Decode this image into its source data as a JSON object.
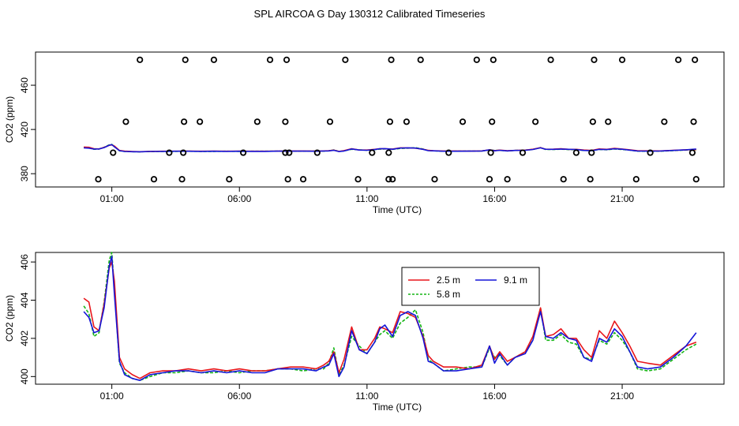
{
  "figure_title": "SPL AIRCOA G  Day 130312  Calibrated Timeseries",
  "chart_data": [
    {
      "type": "scatter",
      "name": "top-panel",
      "xlabel": "Time (UTC)",
      "ylabel": "CO2 (ppm)",
      "xlim": [
        -1.0,
        24.0
      ],
      "ylim": [
        368,
        490
      ],
      "xticks": [
        {
          "value": 1,
          "label": "01:00"
        },
        {
          "value": 6,
          "label": "06:00"
        },
        {
          "value": 11,
          "label": "11:00"
        },
        {
          "value": 16,
          "label": "16:00"
        },
        {
          "value": 21,
          "label": "21:00"
        }
      ],
      "yticks": [
        {
          "value": 380,
          "label": "380"
        },
        {
          "value": 420,
          "label": "420"
        },
        {
          "value": 460,
          "label": "460"
        }
      ],
      "markers": {
        "x": [
          0.47,
          1.05,
          1.55,
          2.1,
          2.65,
          3.25,
          3.75,
          3.8,
          3.83,
          3.88,
          4.45,
          5.0,
          5.6,
          6.15,
          6.7,
          7.2,
          7.8,
          7.8,
          7.85,
          7.9,
          7.95,
          8.5,
          9.05,
          9.55,
          10.15,
          10.65,
          11.2,
          11.85,
          11.85,
          11.9,
          11.95,
          12.0,
          12.55,
          13.1,
          13.65,
          14.2,
          14.75,
          15.3,
          15.8,
          15.85,
          15.9,
          15.95,
          16.5,
          17.1,
          17.6,
          18.2,
          18.7,
          19.2,
          19.75,
          19.8,
          19.85,
          19.9,
          20.45,
          21.0,
          21.55,
          22.1,
          22.65,
          23.2,
          23.75,
          23.8,
          23.85,
          23.9
        ],
        "y": [
          375,
          399,
          427,
          483,
          375,
          399,
          375,
          399,
          427,
          483,
          427,
          483,
          375,
          399,
          427,
          483,
          399,
          427,
          483,
          375,
          399,
          375,
          399,
          427,
          483,
          375,
          399,
          375,
          399,
          427,
          483,
          375,
          427,
          483,
          375,
          399,
          427,
          483,
          375,
          399,
          427,
          483,
          375,
          399,
          427,
          483,
          375,
          399,
          375,
          399,
          427,
          483,
          427,
          483,
          375,
          399,
          427,
          483,
          399,
          427,
          483,
          375
        ]
      },
      "series": [
        {
          "name": "2.5 m",
          "color": "#e8161b",
          "values_from": "bottom-panel"
        },
        {
          "name": "5.8 m",
          "color": "#15b515",
          "values_from": "bottom-panel"
        },
        {
          "name": "9.1 m",
          "color": "#1515d8",
          "values_from": "bottom-panel"
        }
      ]
    },
    {
      "type": "line",
      "name": "bottom-panel",
      "xlabel": "Time (UTC)",
      "ylabel": "CO2 (ppm)",
      "xlim": [
        -1.0,
        24.0
      ],
      "ylim": [
        399.6,
        406.5
      ],
      "xticks": [
        {
          "value": 1,
          "label": "01:00"
        },
        {
          "value": 6,
          "label": "06:00"
        },
        {
          "value": 11,
          "label": "11:00"
        },
        {
          "value": 16,
          "label": "16:00"
        },
        {
          "value": 21,
          "label": "21:00"
        }
      ],
      "yticks": [
        {
          "value": 400,
          "label": "400"
        },
        {
          "value": 402,
          "label": "402"
        },
        {
          "value": 404,
          "label": "404"
        },
        {
          "value": 406,
          "label": "406"
        }
      ],
      "legend": {
        "position": "top-center",
        "entries": [
          "2.5 m",
          "9.1 m",
          "5.8 m"
        ]
      },
      "x": [
        -0.1,
        0.1,
        0.3,
        0.5,
        0.7,
        0.9,
        1.0,
        1.1,
        1.3,
        1.5,
        1.8,
        2.1,
        2.5,
        3.0,
        3.5,
        4.0,
        4.5,
        5.0,
        5.5,
        6.0,
        6.5,
        7.0,
        7.5,
        8.0,
        8.5,
        9.0,
        9.3,
        9.5,
        9.7,
        9.9,
        10.1,
        10.4,
        10.7,
        11.0,
        11.3,
        11.5,
        11.7,
        12.0,
        12.3,
        12.6,
        12.9,
        13.2,
        13.4,
        13.6,
        14.0,
        14.5,
        15.0,
        15.5,
        15.8,
        16.0,
        16.2,
        16.5,
        16.8,
        17.2,
        17.5,
        17.8,
        18.0,
        18.3,
        18.6,
        18.9,
        19.2,
        19.5,
        19.8,
        20.1,
        20.4,
        20.7,
        21.0,
        21.3,
        21.6,
        22.0,
        22.5,
        23.0,
        23.5,
        23.9
      ],
      "series": [
        {
          "name": "2.5 m",
          "color": "#e8161b",
          "dash": "solid",
          "values": [
            404.1,
            403.9,
            402.6,
            402.4,
            403.8,
            405.7,
            406.0,
            405.0,
            401.0,
            400.4,
            400.1,
            399.9,
            400.2,
            400.3,
            400.3,
            400.4,
            400.3,
            400.4,
            400.3,
            400.4,
            400.3,
            400.3,
            400.4,
            400.5,
            400.5,
            400.4,
            400.6,
            400.8,
            401.3,
            400.2,
            400.9,
            402.6,
            401.4,
            401.4,
            402.0,
            402.6,
            402.5,
            402.3,
            403.4,
            403.3,
            403.1,
            402.1,
            401.1,
            400.8,
            400.5,
            400.5,
            400.4,
            400.6,
            401.6,
            400.9,
            401.3,
            400.8,
            401.0,
            401.3,
            402.1,
            403.6,
            402.1,
            402.2,
            402.5,
            402.0,
            402.0,
            401.4,
            401.0,
            402.4,
            402.0,
            402.9,
            402.3,
            401.6,
            400.8,
            400.7,
            400.6,
            401.1,
            401.6,
            401.8
          ]
        },
        {
          "name": "5.8 m",
          "color": "#15b515",
          "dash": "dashed",
          "values": [
            403.7,
            403.3,
            402.1,
            402.3,
            403.9,
            406.1,
            406.5,
            404.6,
            400.7,
            400.2,
            399.9,
            399.8,
            400.0,
            400.2,
            400.2,
            400.3,
            400.2,
            400.2,
            400.3,
            400.2,
            400.3,
            400.3,
            400.4,
            400.4,
            400.3,
            400.4,
            400.4,
            400.7,
            401.5,
            400.1,
            400.6,
            402.1,
            401.6,
            401.2,
            401.8,
            402.2,
            402.4,
            402.0,
            402.8,
            403.1,
            403.5,
            402.3,
            400.9,
            400.7,
            400.3,
            400.4,
            400.5,
            400.5,
            401.5,
            401.0,
            401.1,
            400.6,
            401.0,
            401.3,
            401.9,
            403.6,
            401.9,
            401.9,
            402.2,
            401.8,
            401.7,
            401.0,
            400.9,
            401.9,
            401.7,
            402.3,
            401.9,
            401.3,
            400.4,
            400.3,
            400.4,
            400.9,
            401.4,
            401.7
          ]
        },
        {
          "name": "9.1 m",
          "color": "#1515d8",
          "dash": "solid",
          "values": [
            403.4,
            403.1,
            402.3,
            402.4,
            403.6,
            405.8,
            406.3,
            404.3,
            400.8,
            400.1,
            399.9,
            399.8,
            400.1,
            400.2,
            400.3,
            400.3,
            400.2,
            400.3,
            400.2,
            400.3,
            400.2,
            400.2,
            400.4,
            400.4,
            400.4,
            400.3,
            400.5,
            400.6,
            401.2,
            400.0,
            400.5,
            402.4,
            401.4,
            401.2,
            401.8,
            402.5,
            402.7,
            402.1,
            403.2,
            403.4,
            403.2,
            402.0,
            400.8,
            400.7,
            400.3,
            400.3,
            400.4,
            400.5,
            401.6,
            400.7,
            401.2,
            400.6,
            401.0,
            401.2,
            401.9,
            403.4,
            402.1,
            402.0,
            402.3,
            402.0,
            401.9,
            401.0,
            400.8,
            402.0,
            401.8,
            402.5,
            402.1,
            401.3,
            400.5,
            400.4,
            400.5,
            401.0,
            401.6,
            402.3
          ]
        }
      ]
    }
  ]
}
